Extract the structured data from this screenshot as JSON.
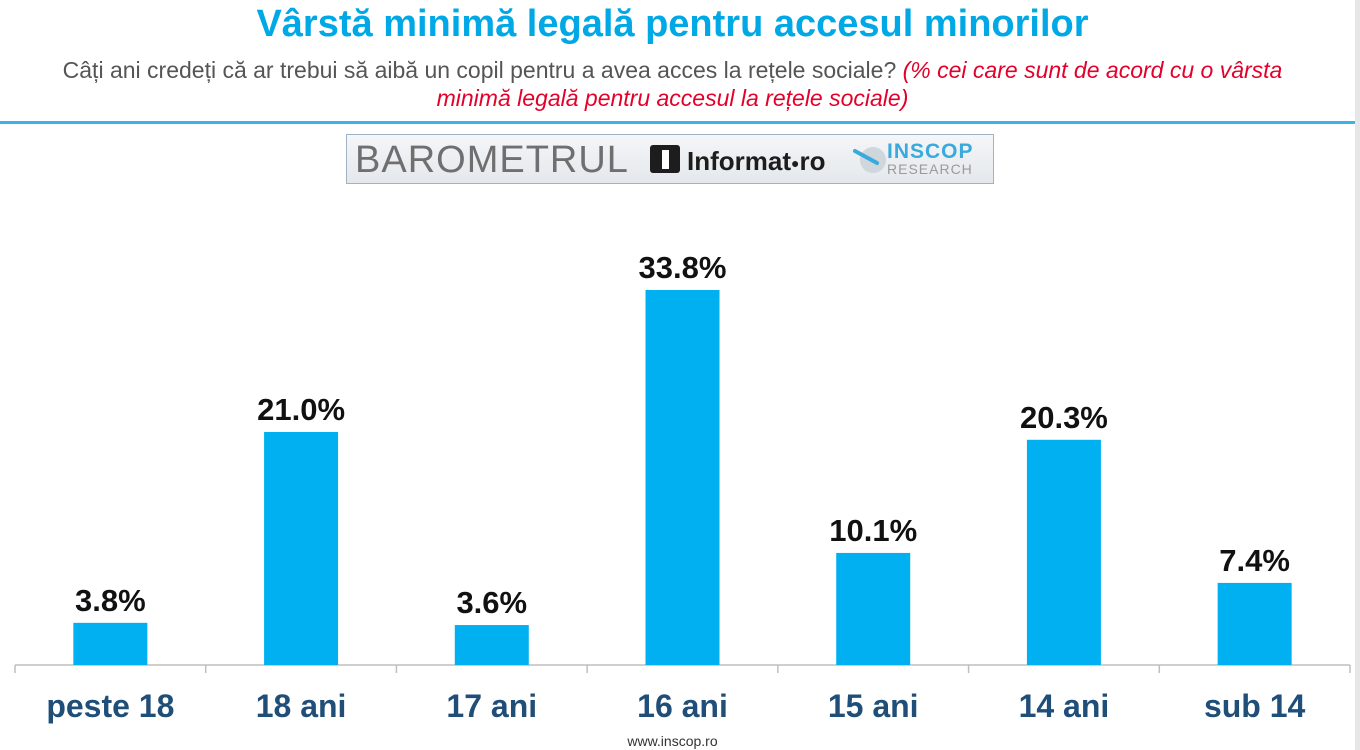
{
  "header": {
    "title": "Vârstă minimă legală pentru accesul minorilor",
    "subtitle_question": "Câți ani credeți că ar trebui să aibă un copil pentru a avea acces la rețele sociale?",
    "subtitle_note": "(% cei care sunt de acord cu o vârsta minimă legală pentru accesul la rețele sociale)"
  },
  "logo": {
    "barometer": "BAROMETRUL",
    "informat": "Informat",
    "informat_tld": "ro",
    "inscop": "INSCOP",
    "inscop_sub": "RESEARCH"
  },
  "footer": {
    "url": "www.inscop.ro"
  },
  "colors": {
    "title": "#00a9e6",
    "bar": "#00b0f0",
    "category_label": "#1f4e79",
    "note": "#e4002b"
  },
  "chart_data": {
    "type": "bar",
    "categories": [
      "peste 18",
      "18 ani",
      "17 ani",
      "16 ani",
      "15 ani",
      "14 ani",
      "sub 14"
    ],
    "values": [
      3.8,
      21.0,
      3.6,
      33.8,
      10.1,
      20.3,
      7.4
    ],
    "value_labels": [
      "3.8%",
      "21.0%",
      "3.6%",
      "33.8%",
      "10.1%",
      "20.3%",
      "7.4%"
    ],
    "ylim": [
      0,
      33.8
    ],
    "grid": false,
    "legend": "none"
  }
}
